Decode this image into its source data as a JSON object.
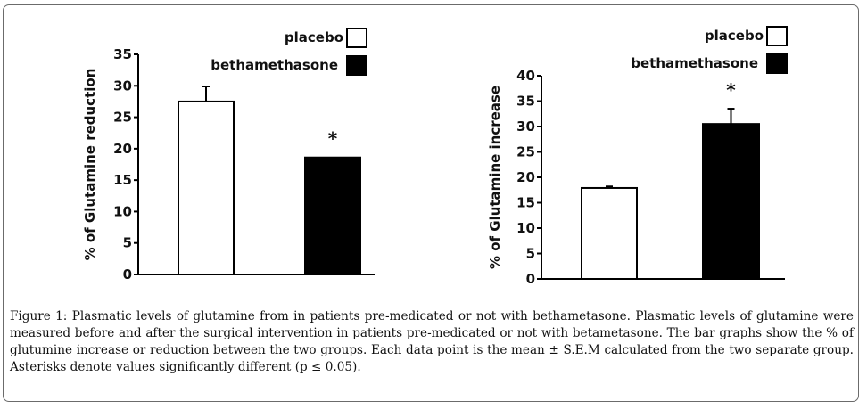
{
  "chart_data": [
    {
      "type": "bar",
      "title": "",
      "xlabel": "",
      "ylabel": "% of Glutamine reduction",
      "ylim": [
        0,
        35
      ],
      "yticks": [
        0,
        5,
        10,
        15,
        20,
        25,
        30,
        35
      ],
      "categories": [
        "placebo",
        "bethamethasone"
      ],
      "values": [
        27.5,
        18.6
      ],
      "error_upper": [
        2.4,
        0
      ],
      "colors": [
        "#ffffff",
        "#000000"
      ],
      "significance": [
        "",
        "*"
      ],
      "legend": {
        "entries": [
          "placebo",
          "bethamethasone"
        ],
        "placement": "top-right"
      },
      "grid": false
    },
    {
      "type": "bar",
      "title": "",
      "xlabel": "",
      "ylabel": "% of Glutamine increase",
      "ylim": [
        0,
        40
      ],
      "yticks": [
        0,
        5,
        10,
        15,
        20,
        25,
        30,
        35,
        40
      ],
      "categories": [
        "placebo",
        "bethamethasone"
      ],
      "values": [
        17.9,
        30.5
      ],
      "error_upper": [
        0.3,
        3.0
      ],
      "colors": [
        "#ffffff",
        "#000000"
      ],
      "significance": [
        "",
        "*"
      ],
      "legend": {
        "entries": [
          "placebo",
          "bethamethasone"
        ],
        "placement": "top-right"
      },
      "grid": false
    }
  ],
  "caption": {
    "label": "Figure 1:",
    "text": "Plasmatic levels of glutamine from in patients pre-medicated or not with bethametasone. Plasmatic levels of glutamine were measured before and after the surgical intervention in patients pre-medicated or not with betametasone. The bar graphs show the % of glutumine increase or reduction between the two groups. Each data point is the mean ± S.E.M calculated from the two separate group. Asterisks denote values significantly different (p ≤ 0.05)."
  }
}
